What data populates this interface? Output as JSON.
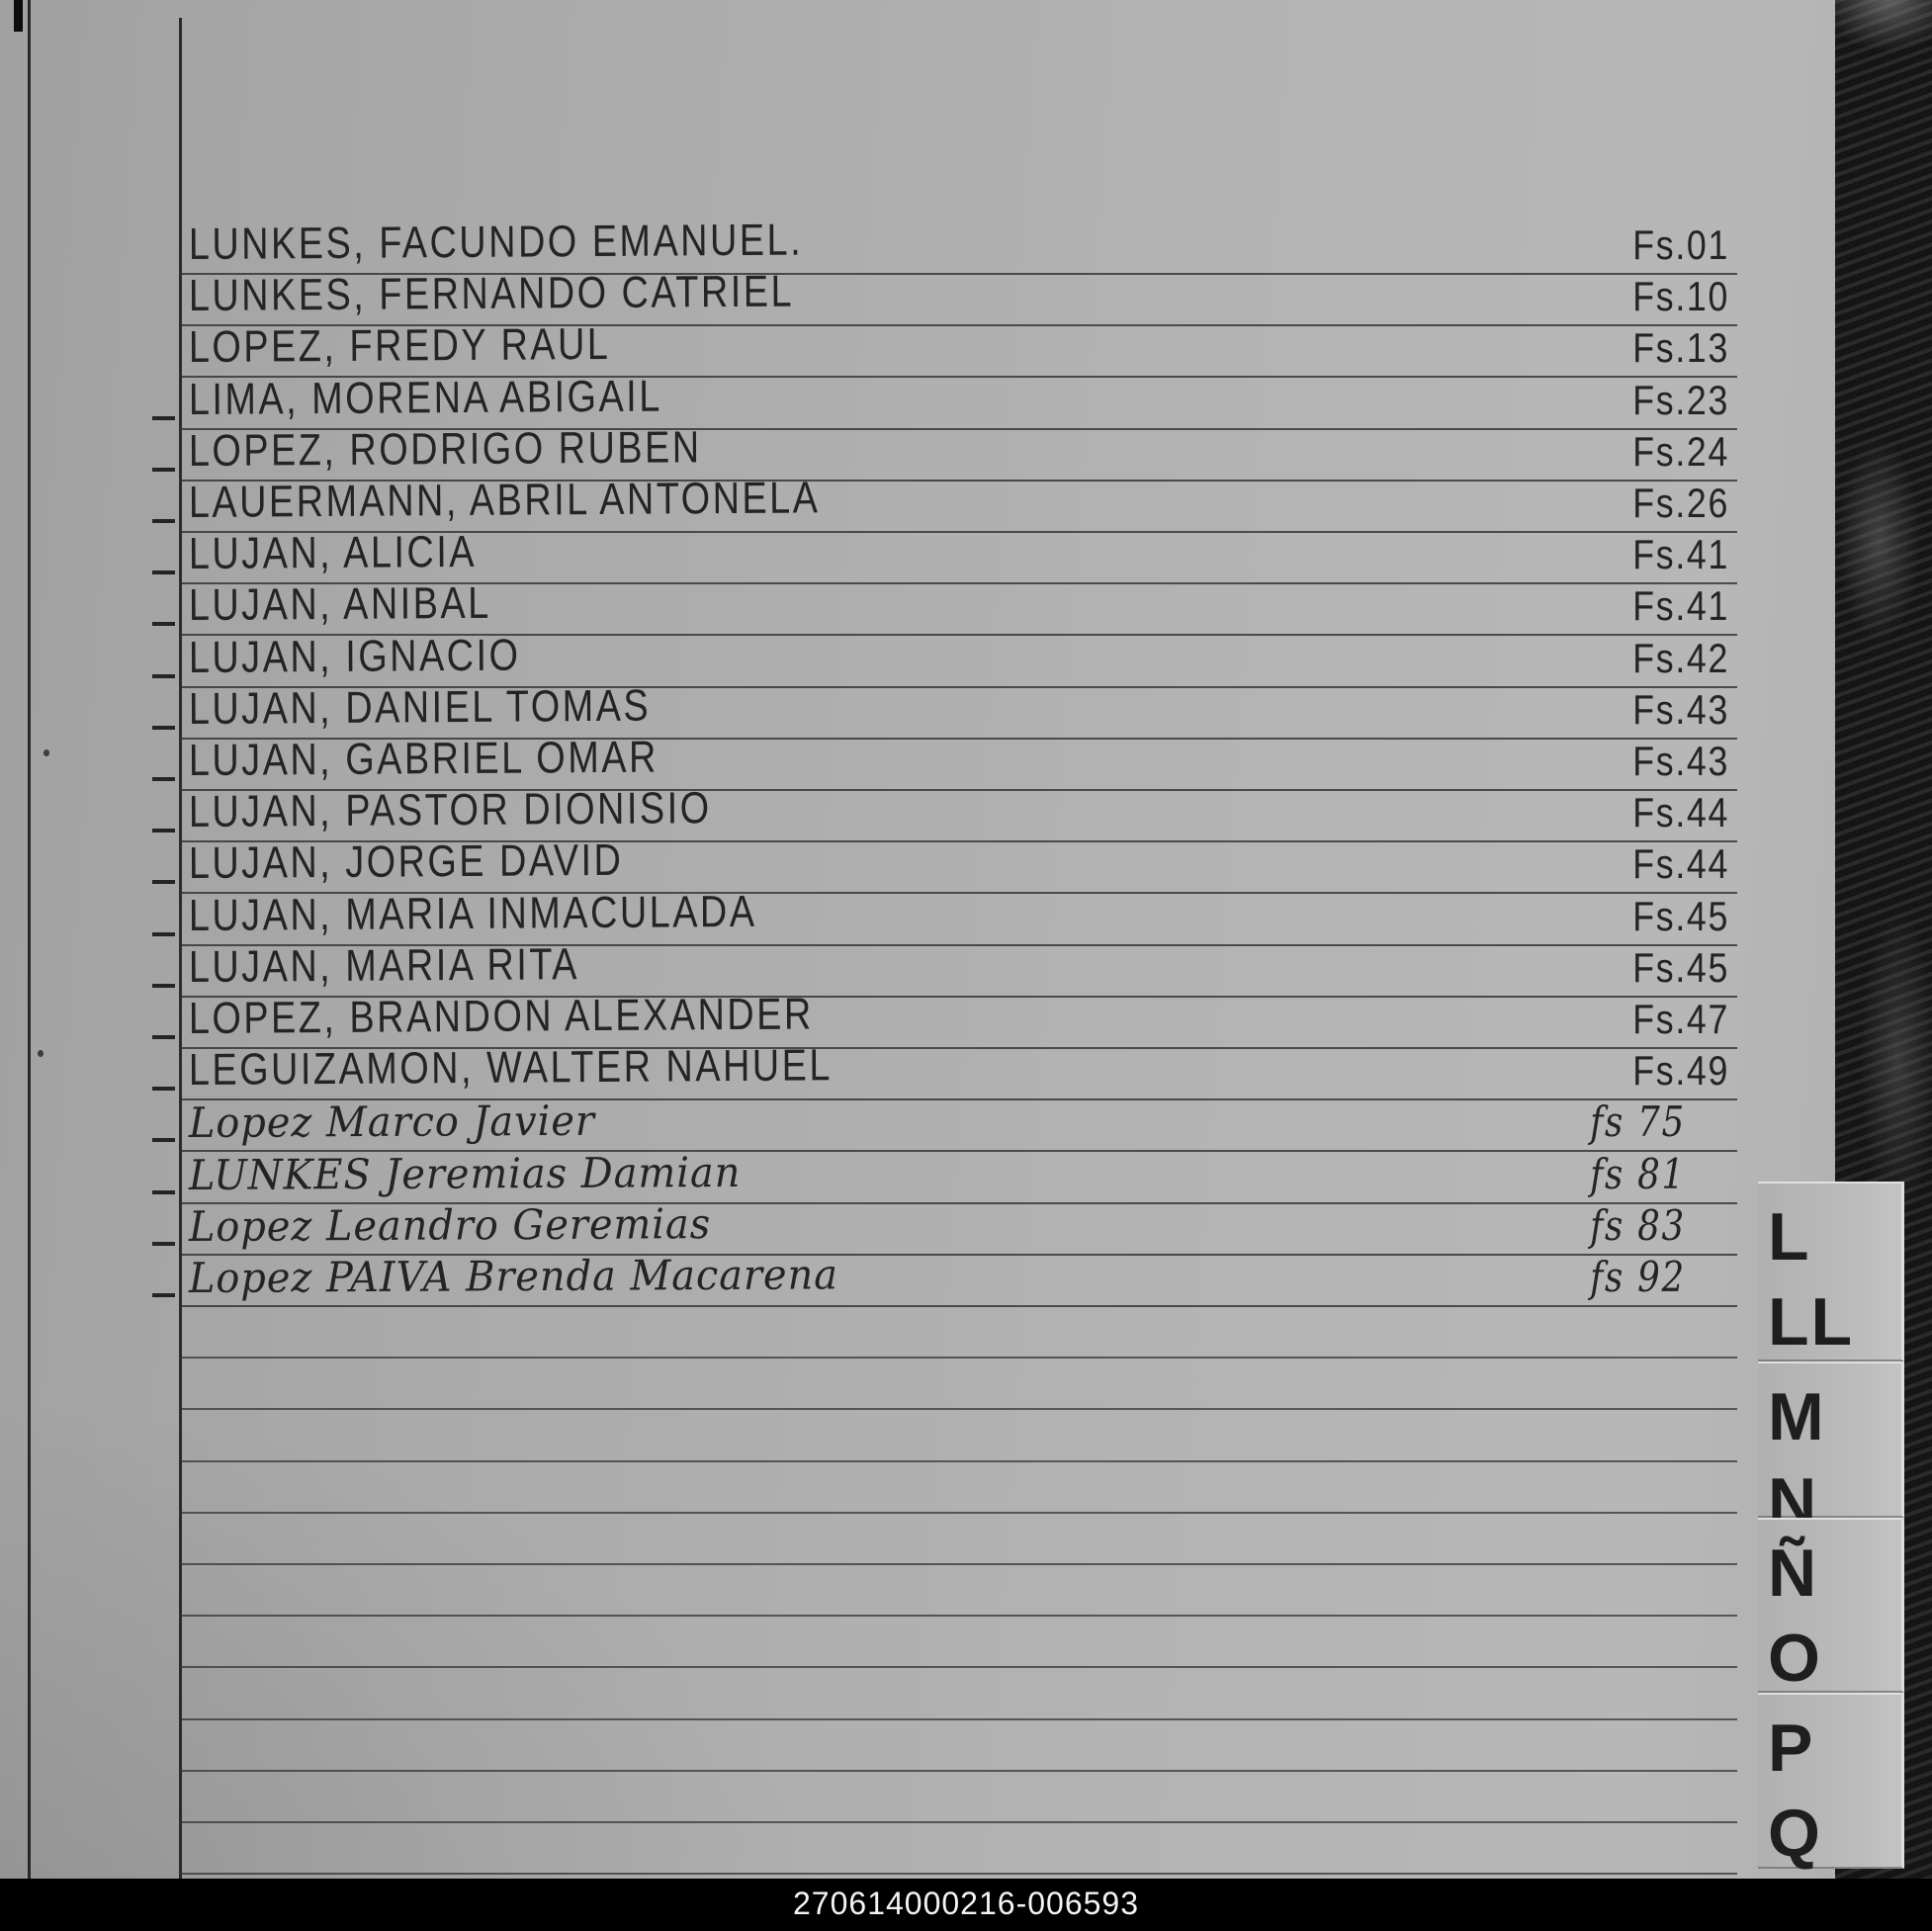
{
  "entries": [
    {
      "name": "LUNKES, FACUNDO EMANUEL.",
      "fs": "Fs.01",
      "dash": false,
      "script": "print"
    },
    {
      "name": "LUNKES, FERNANDO CATRIEL",
      "fs": "Fs.10",
      "dash": false,
      "script": "print"
    },
    {
      "name": "LOPEZ, FREDY RAUL",
      "fs": "Fs.13",
      "dash": false,
      "script": "print"
    },
    {
      "name": "LIMA, MORENA ABIGAIL",
      "fs": "Fs.23",
      "dash": true,
      "script": "print"
    },
    {
      "name": "LOPEZ, RODRIGO RUBEN",
      "fs": "Fs.24",
      "dash": true,
      "script": "print"
    },
    {
      "name": "LAUERMANN, ABRIL ANTONELA",
      "fs": "Fs.26",
      "dash": true,
      "script": "print"
    },
    {
      "name": "LUJAN, ALICIA",
      "fs": "Fs.41",
      "dash": true,
      "script": "print"
    },
    {
      "name": "LUJAN, ANIBAL",
      "fs": "Fs.41",
      "dash": true,
      "script": "print"
    },
    {
      "name": "LUJAN, IGNACIO",
      "fs": "Fs.42",
      "dash": true,
      "script": "print"
    },
    {
      "name": "LUJAN, DANIEL TOMAS",
      "fs": "Fs.43",
      "dash": true,
      "script": "print"
    },
    {
      "name": "LUJAN, GABRIEL OMAR",
      "fs": "Fs.43",
      "dash": true,
      "script": "print"
    },
    {
      "name": "LUJAN, PASTOR DIONISIO",
      "fs": "Fs.44",
      "dash": true,
      "script": "print"
    },
    {
      "name": "LUJAN, JORGE DAVID",
      "fs": "Fs.44",
      "dash": true,
      "script": "print"
    },
    {
      "name": "LUJAN, MARIA INMACULADA",
      "fs": "Fs.45",
      "dash": true,
      "script": "print"
    },
    {
      "name": "LUJAN, MARIA RITA",
      "fs": "Fs.45",
      "dash": true,
      "script": "print"
    },
    {
      "name": "LOPEZ, BRANDON ALEXANDER",
      "fs": "Fs.47",
      "dash": true,
      "script": "print"
    },
    {
      "name": "LEGUIZAMON, WALTER NAHUEL",
      "fs": "Fs.49",
      "dash": true,
      "script": "print"
    },
    {
      "name": "Lopez Marco Javier",
      "fs": "fs 75",
      "dash": true,
      "script": "cursive"
    },
    {
      "name": "LUNKES Jeremias Damian",
      "fs": "fs 81",
      "dash": true,
      "script": "cursive"
    },
    {
      "name": "Lopez Leandro Geremias",
      "fs": "fs 83",
      "dash": true,
      "script": "cursive"
    },
    {
      "name": "Lopez PAIVA Brenda Macarena",
      "fs": "fs 92",
      "dash": true,
      "script": "cursive"
    }
  ],
  "tabs": {
    "letters": [
      "L",
      "LL",
      "M",
      "N",
      "Ñ",
      "O",
      "P",
      "Q"
    ]
  },
  "footer": {
    "code": "270614000216-006593"
  },
  "colors": {
    "ink": "#242424",
    "rule-line": "#303030",
    "paper": "#aeaeae",
    "edge-dark": "#151515",
    "tab-ink": "#1e1e1e",
    "footer-band": "#000000",
    "footer-text": "#f4f4f4"
  }
}
